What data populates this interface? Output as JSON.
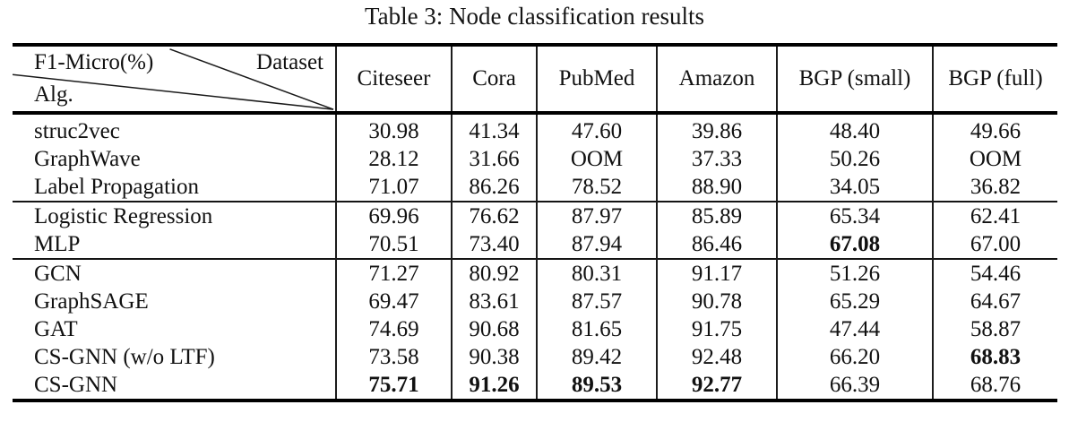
{
  "caption": "Table 3: Node classification results",
  "table": {
    "corner": {
      "top_left": "F1-Micro(%)",
      "top_right": "Dataset",
      "bottom_left": "Alg."
    },
    "columns": [
      "Citeseer",
      "Cora",
      "PubMed",
      "Amazon",
      "BGP (small)",
      "BGP (full)"
    ],
    "groups": [
      {
        "rows": [
          {
            "alg": "struc2vec",
            "values": [
              "30.98",
              "41.34",
              "47.60",
              "39.86",
              "48.40",
              "49.66"
            ],
            "bold": [
              false,
              false,
              false,
              false,
              false,
              false
            ]
          },
          {
            "alg": "GraphWave",
            "values": [
              "28.12",
              "31.66",
              "OOM",
              "37.33",
              "50.26",
              "OOM"
            ],
            "bold": [
              false,
              false,
              false,
              false,
              false,
              false
            ]
          },
          {
            "alg": "Label Propagation",
            "values": [
              "71.07",
              "86.26",
              "78.52",
              "88.90",
              "34.05",
              "36.82"
            ],
            "bold": [
              false,
              false,
              false,
              false,
              false,
              false
            ]
          }
        ]
      },
      {
        "rows": [
          {
            "alg": "Logistic Regression",
            "values": [
              "69.96",
              "76.62",
              "87.97",
              "85.89",
              "65.34",
              "62.41"
            ],
            "bold": [
              false,
              false,
              false,
              false,
              false,
              false
            ]
          },
          {
            "alg": "MLP",
            "values": [
              "70.51",
              "73.40",
              "87.94",
              "86.46",
              "67.08",
              "67.00"
            ],
            "bold": [
              false,
              false,
              false,
              false,
              true,
              false
            ]
          }
        ]
      },
      {
        "rows": [
          {
            "alg": "GCN",
            "values": [
              "71.27",
              "80.92",
              "80.31",
              "91.17",
              "51.26",
              "54.46"
            ],
            "bold": [
              false,
              false,
              false,
              false,
              false,
              false
            ]
          },
          {
            "alg": "GraphSAGE",
            "values": [
              "69.47",
              "83.61",
              "87.57",
              "90.78",
              "65.29",
              "64.67"
            ],
            "bold": [
              false,
              false,
              false,
              false,
              false,
              false
            ]
          },
          {
            "alg": "GAT",
            "values": [
              "74.69",
              "90.68",
              "81.65",
              "91.75",
              "47.44",
              "58.87"
            ],
            "bold": [
              false,
              false,
              false,
              false,
              false,
              false
            ]
          },
          {
            "alg": "CS-GNN (w/o LTF)",
            "values": [
              "73.58",
              "90.38",
              "89.42",
              "92.48",
              "66.20",
              "68.83"
            ],
            "bold": [
              false,
              false,
              false,
              false,
              false,
              true
            ]
          },
          {
            "alg": "CS-GNN",
            "values": [
              "75.71",
              "91.26",
              "89.53",
              "92.77",
              "66.39",
              "68.76"
            ],
            "bold": [
              true,
              true,
              true,
              true,
              false,
              false
            ]
          }
        ]
      }
    ]
  },
  "chart_data": {
    "type": "table",
    "title": "Table 3: Node classification results",
    "metric": "F1-Micro(%)",
    "categories": [
      "Citeseer",
      "Cora",
      "PubMed",
      "Amazon",
      "BGP (small)",
      "BGP (full)"
    ],
    "series": [
      {
        "name": "struc2vec",
        "values": [
          30.98,
          41.34,
          47.6,
          39.86,
          48.4,
          49.66
        ]
      },
      {
        "name": "GraphWave",
        "values": [
          28.12,
          31.66,
          "OOM",
          37.33,
          50.26,
          "OOM"
        ]
      },
      {
        "name": "Label Propagation",
        "values": [
          71.07,
          86.26,
          78.52,
          88.9,
          34.05,
          36.82
        ]
      },
      {
        "name": "Logistic Regression",
        "values": [
          69.96,
          76.62,
          87.97,
          85.89,
          65.34,
          62.41
        ]
      },
      {
        "name": "MLP",
        "values": [
          70.51,
          73.4,
          87.94,
          86.46,
          67.08,
          67.0
        ]
      },
      {
        "name": "GCN",
        "values": [
          71.27,
          80.92,
          80.31,
          91.17,
          51.26,
          54.46
        ]
      },
      {
        "name": "GraphSAGE",
        "values": [
          69.47,
          83.61,
          87.57,
          90.78,
          65.29,
          64.67
        ]
      },
      {
        "name": "GAT",
        "values": [
          74.69,
          90.68,
          81.65,
          91.75,
          47.44,
          58.87
        ]
      },
      {
        "name": "CS-GNN (w/o LTF)",
        "values": [
          73.58,
          90.38,
          89.42,
          92.48,
          66.2,
          68.83
        ]
      },
      {
        "name": "CS-GNN",
        "values": [
          75.71,
          91.26,
          89.53,
          92.77,
          66.39,
          68.76
        ]
      }
    ]
  }
}
